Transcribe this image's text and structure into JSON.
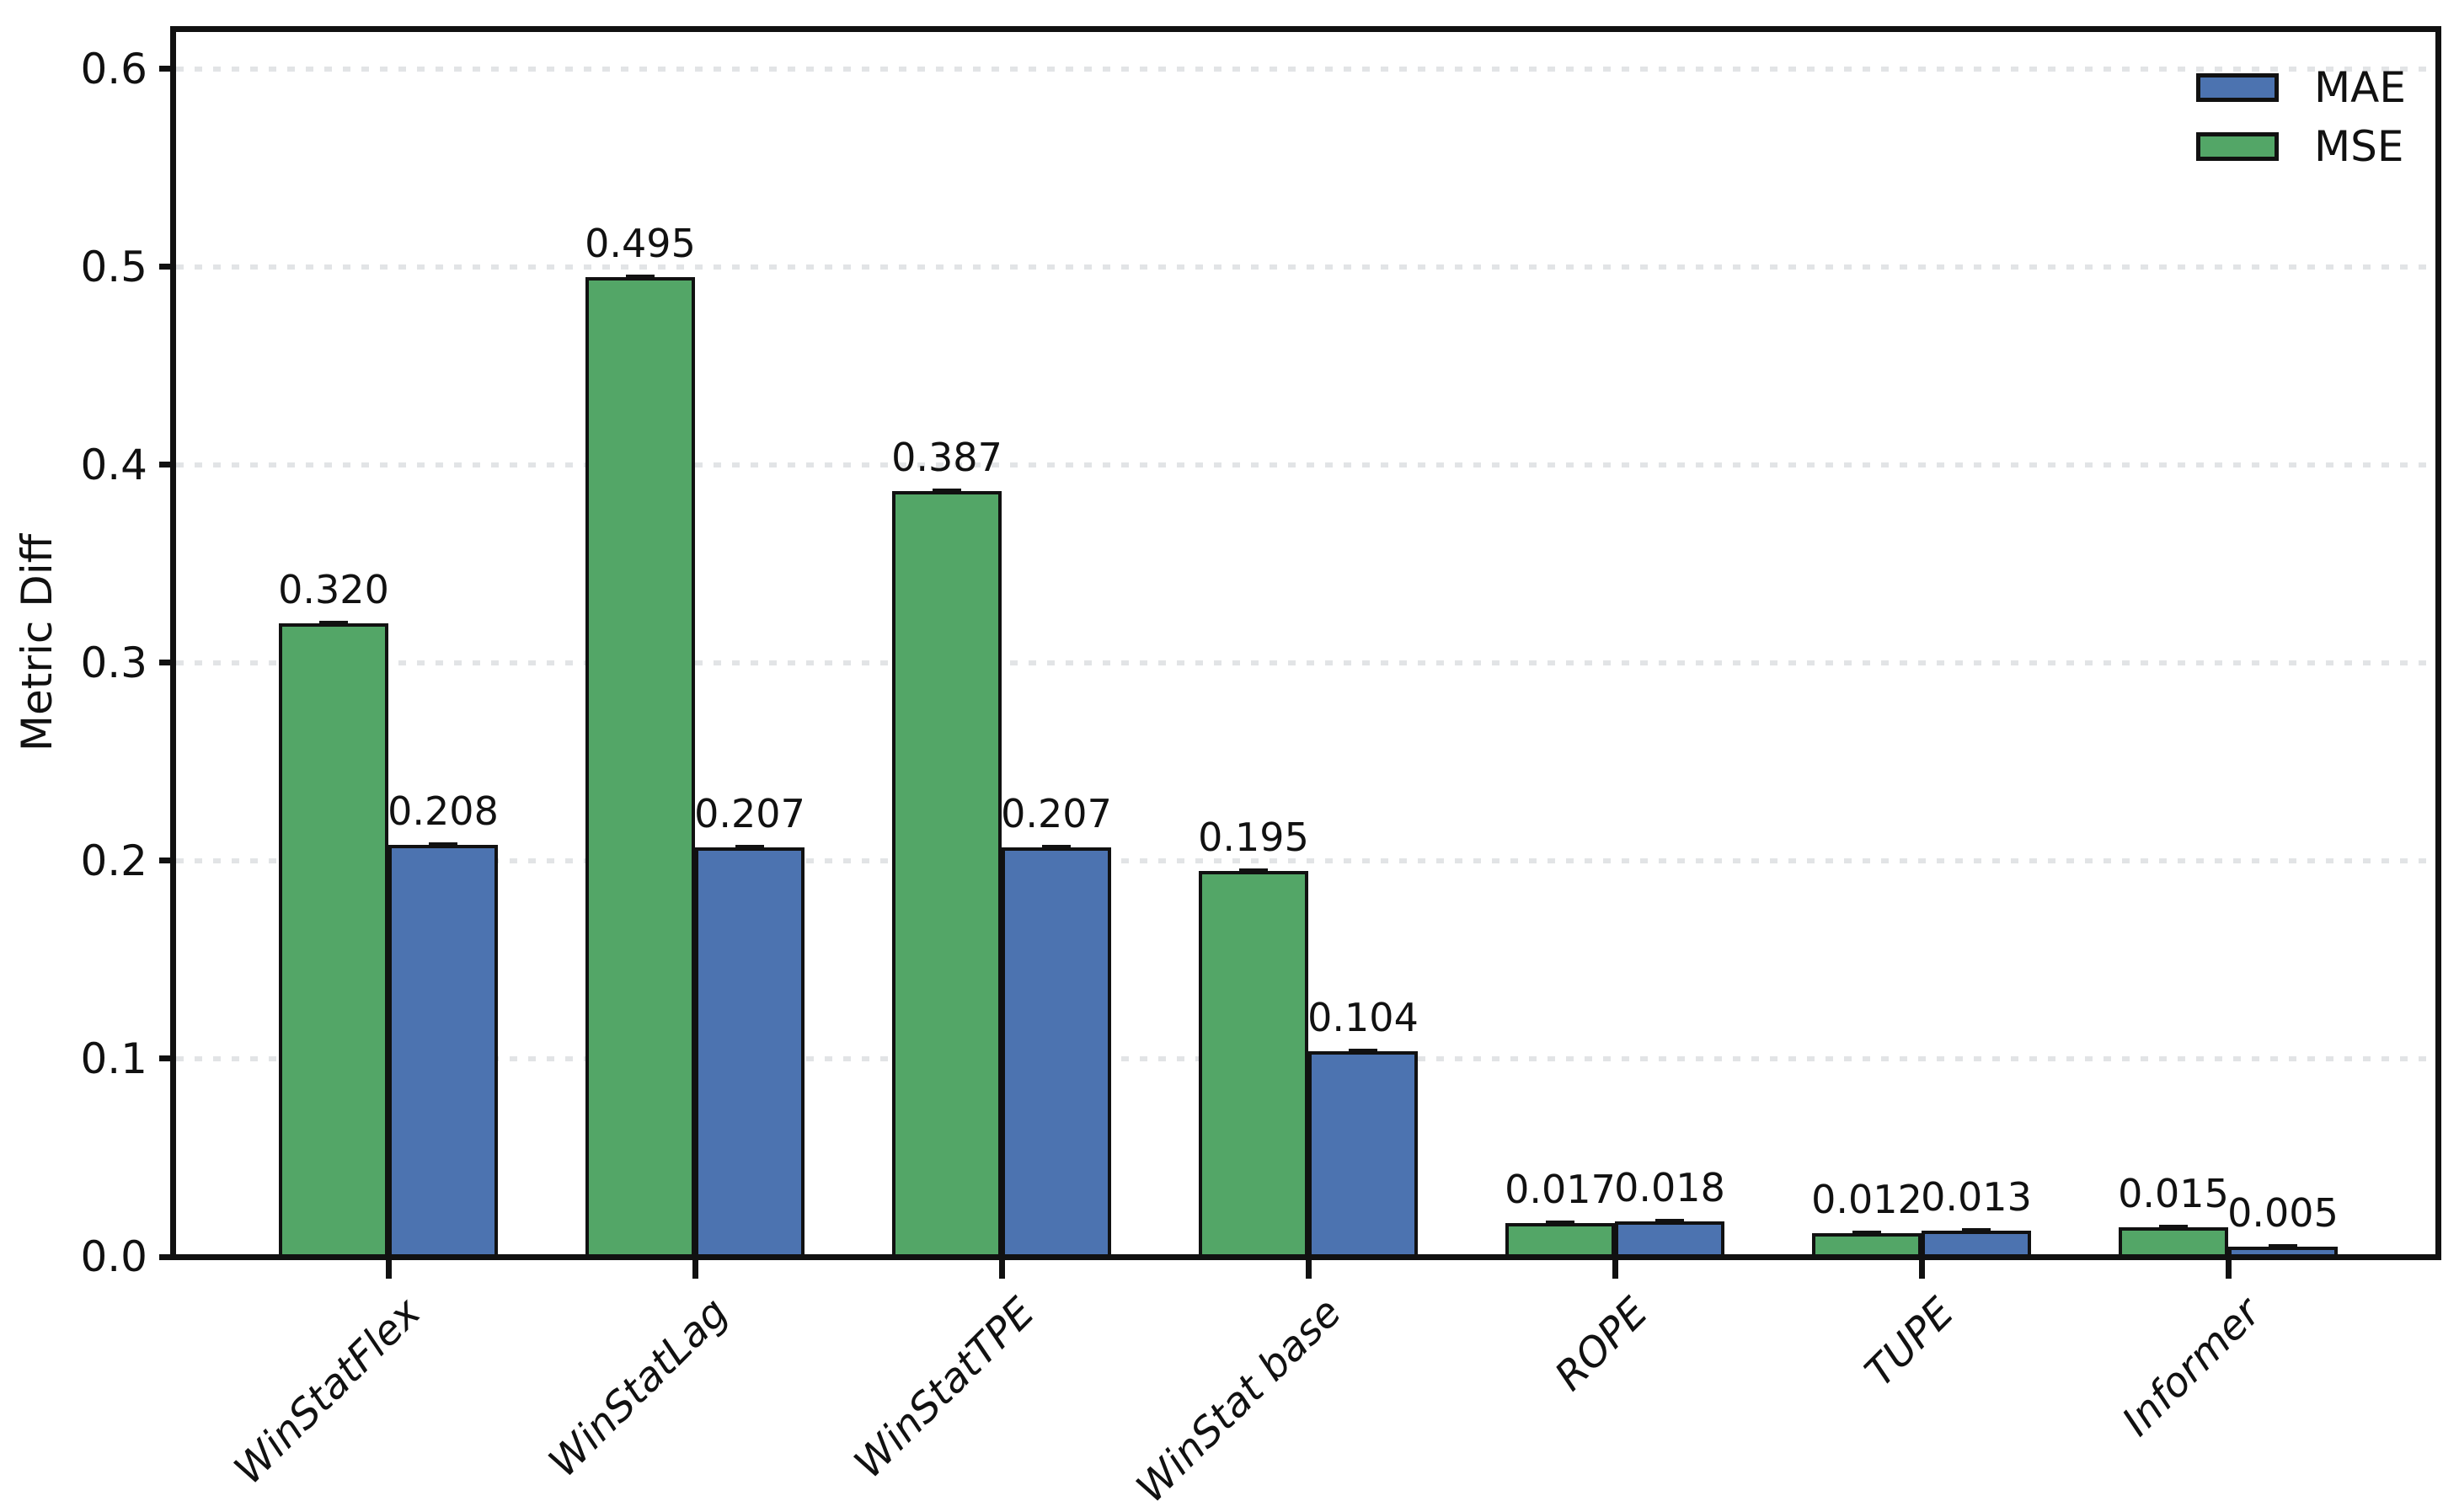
{
  "chart_data": {
    "type": "bar",
    "title": "",
    "ylabel": "Metric Diff",
    "categories": [
      "WinStatFlex",
      "WinStatLag",
      "WinStatTPE",
      "WinStat base",
      "ROPE",
      "TUPE",
      "Informer"
    ],
    "series": [
      {
        "name": "MSE",
        "color": "#53A667",
        "values": [
          0.32,
          0.495,
          0.387,
          0.195,
          0.017,
          0.012,
          0.015
        ],
        "value_labels": [
          "0.320",
          "0.495",
          "0.387",
          "0.195",
          "0.017",
          "0.012",
          "0.015"
        ]
      },
      {
        "name": "MAE",
        "color": "#4C73B0",
        "values": [
          0.208,
          0.207,
          0.207,
          0.104,
          0.018,
          0.013,
          0.005
        ],
        "value_labels": [
          "0.208",
          "0.207",
          "0.207",
          "0.104",
          "0.018",
          "0.013",
          "0.005"
        ]
      }
    ],
    "group_bar_order": [
      "MSE",
      "MAE"
    ],
    "legend": {
      "position": "upper-right",
      "frame": false,
      "entries": [
        {
          "label": "MAE",
          "color": "#4C73B0"
        },
        {
          "label": "MSE",
          "color": "#53A667"
        }
      ]
    },
    "y_axis": {
      "tick_labels": [
        "0.0",
        "0.1",
        "0.2",
        "0.3",
        "0.4",
        "0.5",
        "0.6"
      ],
      "tick_values": [
        0.0,
        0.1,
        0.2,
        0.3,
        0.4,
        0.5,
        0.6
      ],
      "ylim": [
        0,
        0.6187
      ]
    },
    "x_axis": {
      "tick_label_style": "italic",
      "tick_label_rotation_deg": 45
    },
    "grid": {
      "axis": "y",
      "style": "dotted",
      "color": "#E2E4E6"
    },
    "error_bars": {
      "show": true,
      "cap_color": "#111111"
    },
    "bar_edge_color": "#111111"
  }
}
